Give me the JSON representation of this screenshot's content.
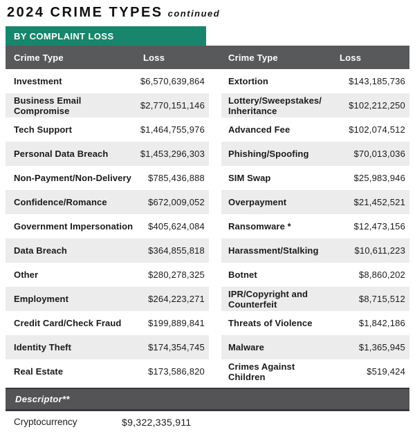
{
  "title": {
    "main": "2024 CRIME TYPES",
    "suffix": "continued"
  },
  "section_banner": {
    "label": "BY COMPLAINT LOSS"
  },
  "columns": {
    "crime": "Crime Type",
    "loss": "Loss"
  },
  "colors": {
    "banner_green": "#17866C",
    "header_gray": "#58595B",
    "stripe_gray": "#ECECEC",
    "descriptor_gray": "#545457",
    "text": "#1A1A1A"
  },
  "left_table": {
    "rows": [
      {
        "crime": "Investment",
        "loss": "$6,570,639,864"
      },
      {
        "crime": "Business Email Compromise",
        "loss": "$2,770,151,146"
      },
      {
        "crime": "Tech Support",
        "loss": "$1,464,755,976"
      },
      {
        "crime": "Personal Data Breach",
        "loss": "$1,453,296,303"
      },
      {
        "crime": "Non-Payment/Non-Delivery",
        "loss": "$785,436,888"
      },
      {
        "crime": "Confidence/Romance",
        "loss": "$672,009,052"
      },
      {
        "crime": "Government Impersonation",
        "loss": "$405,624,084"
      },
      {
        "crime": "Data Breach",
        "loss": "$364,855,818"
      },
      {
        "crime": "Other",
        "loss": "$280,278,325"
      },
      {
        "crime": "Employment",
        "loss": "$264,223,271"
      },
      {
        "crime": "Credit Card/Check Fraud",
        "loss": "$199,889,841"
      },
      {
        "crime": "Identity Theft",
        "loss": "$174,354,745"
      },
      {
        "crime": "Real Estate",
        "loss": "$173,586,820"
      }
    ]
  },
  "right_table": {
    "rows": [
      {
        "crime": "Extortion",
        "loss": "$143,185,736"
      },
      {
        "crime": "Lottery/Sweepstakes/ Inheritance",
        "loss": "$102,212,250"
      },
      {
        "crime": "Advanced Fee",
        "loss": "$102,074,512"
      },
      {
        "crime": "Phishing/Spoofing",
        "loss": "$70,013,036"
      },
      {
        "crime": "SIM Swap",
        "loss": "$25,983,946"
      },
      {
        "crime": "Overpayment",
        "loss": "$21,452,521"
      },
      {
        "crime": "Ransomware *",
        "loss": "$12,473,156"
      },
      {
        "crime": "Harassment/Stalking",
        "loss": "$10,611,223"
      },
      {
        "crime": "Botnet",
        "loss": "$8,860,202"
      },
      {
        "crime": "IPR/Copyright and Counterfeit",
        "loss": "$8,715,512"
      },
      {
        "crime": "Threats of Violence",
        "loss": "$1,842,186"
      },
      {
        "crime": "Malware",
        "loss": "$1,365,945"
      },
      {
        "crime": "Crimes Against Children",
        "loss": "$519,424"
      }
    ]
  },
  "descriptor": {
    "label": "Descriptor**",
    "row": {
      "crime": "Cryptocurrency",
      "loss": "$9,322,335,911"
    }
  }
}
